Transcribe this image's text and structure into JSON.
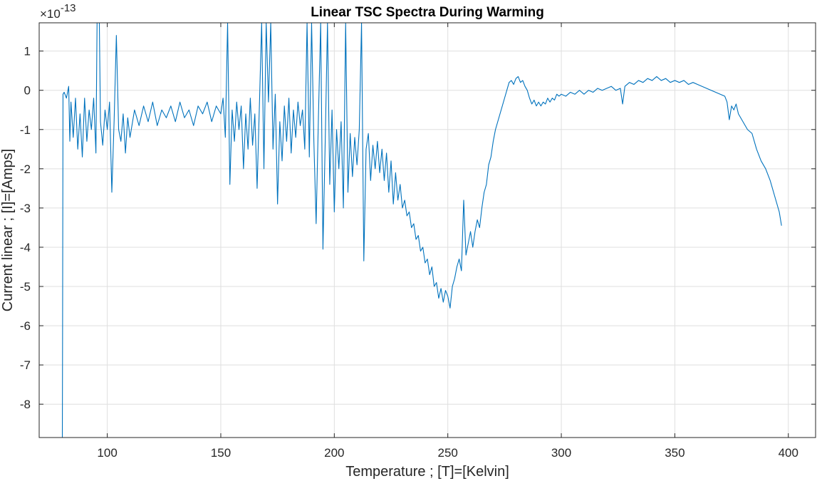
{
  "chart_data": {
    "type": "line",
    "title": "Linear TSC Spectra During Warming",
    "xlabel": "Temperature ; [T]=[Kelvin]",
    "ylabel": "Current linear ; [I]=[Amps]",
    "y_multiplier_base": "×10",
    "y_multiplier_exponent": "-13",
    "xlim": [
      70,
      412
    ],
    "ylim": [
      -8.85,
      1.72
    ],
    "x_ticks": [
      100,
      150,
      200,
      250,
      300,
      350,
      400
    ],
    "y_ticks": [
      -8,
      -7,
      -6,
      -5,
      -4,
      -3,
      -2,
      -1,
      0,
      1
    ],
    "x_tick_labels": [
      "100",
      "150",
      "200",
      "250",
      "300",
      "350",
      "400"
    ],
    "y_tick_labels": [
      "-8",
      "-7",
      "-6",
      "-5",
      "-4",
      "-3",
      "-2",
      "-1",
      "0",
      "1"
    ],
    "grid": true,
    "series": [
      {
        "color": "#0072BD",
        "points": [
          [
            80.2,
            -8.85
          ],
          [
            80.3,
            -6.4
          ],
          [
            80.5,
            -0.1
          ],
          [
            81,
            -0.05
          ],
          [
            82,
            -0.2
          ],
          [
            83,
            0.1
          ],
          [
            83.5,
            -1.3
          ],
          [
            84,
            -0.3
          ],
          [
            85,
            -1.2
          ],
          [
            86,
            -0.2
          ],
          [
            87,
            -1.5
          ],
          [
            88,
            -0.6
          ],
          [
            89,
            -1.7
          ],
          [
            90,
            -0.2
          ],
          [
            91,
            -1.3
          ],
          [
            92,
            -0.5
          ],
          [
            93,
            -1.0
          ],
          [
            94,
            -0.2
          ],
          [
            95,
            -1.6
          ],
          [
            95.5,
            1.72
          ],
          [
            96.5,
            1.72
          ],
          [
            97,
            -0.8
          ],
          [
            98,
            -1.4
          ],
          [
            99,
            -0.5
          ],
          [
            100,
            -1.0
          ],
          [
            101,
            -0.3
          ],
          [
            102,
            -2.6
          ],
          [
            103,
            -0.8
          ],
          [
            104,
            1.4
          ],
          [
            105,
            -1.0
          ],
          [
            106,
            -1.3
          ],
          [
            107,
            -0.6
          ],
          [
            108,
            -1.6
          ],
          [
            109,
            -0.7
          ],
          [
            110,
            -1.2
          ],
          [
            112,
            -0.5
          ],
          [
            114,
            -0.9
          ],
          [
            116,
            -0.4
          ],
          [
            118,
            -0.8
          ],
          [
            120,
            -0.3
          ],
          [
            122,
            -0.9
          ],
          [
            124,
            -0.5
          ],
          [
            126,
            -0.7
          ],
          [
            128,
            -0.4
          ],
          [
            130,
            -0.8
          ],
          [
            132,
            -0.3
          ],
          [
            134,
            -0.7
          ],
          [
            136,
            -0.5
          ],
          [
            138,
            -0.9
          ],
          [
            140,
            -0.4
          ],
          [
            142,
            -0.6
          ],
          [
            144,
            -0.3
          ],
          [
            146,
            -0.8
          ],
          [
            148,
            -0.4
          ],
          [
            150,
            -0.6
          ],
          [
            151,
            -0.2
          ],
          [
            152,
            -1.2
          ],
          [
            153,
            1.72
          ],
          [
            154,
            -2.4
          ],
          [
            155,
            -0.5
          ],
          [
            156,
            -1.3
          ],
          [
            157,
            -0.3
          ],
          [
            158,
            -1.0
          ],
          [
            159,
            -0.4
          ],
          [
            160,
            -2.0
          ],
          [
            161,
            -0.6
          ],
          [
            162,
            -1.5
          ],
          [
            163,
            -0.2
          ],
          [
            164,
            -1.4
          ],
          [
            165,
            -0.6
          ],
          [
            166,
            -2.5
          ],
          [
            167,
            -0.4
          ],
          [
            168,
            1.72
          ],
          [
            169,
            -2.0
          ],
          [
            170,
            1.72
          ],
          [
            171,
            -0.3
          ],
          [
            172,
            1.72
          ],
          [
            173,
            -1.5
          ],
          [
            174,
            -0.1
          ],
          [
            175,
            -2.9
          ],
          [
            176,
            -0.8
          ],
          [
            177,
            -1.8
          ],
          [
            178,
            -0.4
          ],
          [
            179,
            -1.3
          ],
          [
            180,
            -0.2
          ],
          [
            181,
            -1.6
          ],
          [
            182,
            -0.5
          ],
          [
            183,
            -1.2
          ],
          [
            184,
            -0.3
          ],
          [
            185,
            -0.9
          ],
          [
            186,
            -0.5
          ],
          [
            187,
            -1.5
          ],
          [
            188,
            1.72
          ],
          [
            189,
            -1.7
          ],
          [
            190,
            1.72
          ],
          [
            191,
            -1.3
          ],
          [
            192,
            -3.4
          ],
          [
            193,
            -0.7
          ],
          [
            194,
            1.72
          ],
          [
            195,
            -4.05
          ],
          [
            196,
            -1.3
          ],
          [
            197,
            1.72
          ],
          [
            198,
            -2.4
          ],
          [
            199,
            -0.5
          ],
          [
            200,
            -3.1
          ],
          [
            201,
            -1.0
          ],
          [
            202,
            -2.0
          ],
          [
            203,
            -0.8
          ],
          [
            204,
            -3.0
          ],
          [
            205,
            1.72
          ],
          [
            206,
            -2.6
          ],
          [
            207,
            -1.1
          ],
          [
            208,
            -2.2
          ],
          [
            209,
            -1.2
          ],
          [
            210,
            -1.9
          ],
          [
            211,
            -1.0
          ],
          [
            212,
            1.72
          ],
          [
            213,
            -4.35
          ],
          [
            214,
            -1.5
          ],
          [
            215,
            -1.1
          ],
          [
            216,
            -2.3
          ],
          [
            217,
            -1.4
          ],
          [
            218,
            -2.0
          ],
          [
            219,
            -1.3
          ],
          [
            220,
            -2.1
          ],
          [
            221,
            -1.5
          ],
          [
            222,
            -2.3
          ],
          [
            223,
            -1.6
          ],
          [
            224,
            -2.6
          ],
          [
            225,
            -1.8
          ],
          [
            226,
            -2.9
          ],
          [
            227,
            -2.1
          ],
          [
            228,
            -2.8
          ],
          [
            229,
            -2.4
          ],
          [
            230,
            -3.0
          ],
          [
            231,
            -2.8
          ],
          [
            232,
            -3.2
          ],
          [
            233,
            -3.1
          ],
          [
            234,
            -3.5
          ],
          [
            235,
            -3.4
          ],
          [
            236,
            -3.8
          ],
          [
            237,
            -3.7
          ],
          [
            238,
            -4.1
          ],
          [
            239,
            -4.0
          ],
          [
            240,
            -4.4
          ],
          [
            241,
            -4.3
          ],
          [
            242,
            -4.7
          ],
          [
            243,
            -4.5
          ],
          [
            244,
            -5.0
          ],
          [
            245,
            -4.9
          ],
          [
            246,
            -5.3
          ],
          [
            247,
            -5.05
          ],
          [
            248,
            -5.4
          ],
          [
            249,
            -5.1
          ],
          [
            250,
            -5.25
          ],
          [
            251,
            -5.55
          ],
          [
            252,
            -5.0
          ],
          [
            253,
            -4.8
          ],
          [
            254,
            -4.5
          ],
          [
            255,
            -4.3
          ],
          [
            256,
            -4.6
          ],
          [
            257,
            -2.8
          ],
          [
            258,
            -4.2
          ],
          [
            259,
            -3.9
          ],
          [
            260,
            -3.6
          ],
          [
            261,
            -4.0
          ],
          [
            262,
            -3.6
          ],
          [
            263,
            -3.3
          ],
          [
            264,
            -3.5
          ],
          [
            265,
            -3.0
          ],
          [
            266,
            -2.6
          ],
          [
            267,
            -2.4
          ],
          [
            268,
            -1.9
          ],
          [
            269,
            -1.7
          ],
          [
            270,
            -1.3
          ],
          [
            271,
            -1.0
          ],
          [
            272,
            -0.8
          ],
          [
            273,
            -0.6
          ],
          [
            274,
            -0.4
          ],
          [
            275,
            -0.2
          ],
          [
            276,
            0.0
          ],
          [
            277,
            0.2
          ],
          [
            278,
            0.25
          ],
          [
            279,
            0.15
          ],
          [
            280,
            0.3
          ],
          [
            281,
            0.35
          ],
          [
            282,
            0.2
          ],
          [
            283,
            0.25
          ],
          [
            284,
            0.1
          ],
          [
            285,
            0.0
          ],
          [
            286,
            -0.2
          ],
          [
            287,
            -0.35
          ],
          [
            288,
            -0.25
          ],
          [
            289,
            -0.4
          ],
          [
            290,
            -0.3
          ],
          [
            291,
            -0.4
          ],
          [
            292,
            -0.3
          ],
          [
            293,
            -0.35
          ],
          [
            294,
            -0.2
          ],
          [
            295,
            -0.3
          ],
          [
            296,
            -0.2
          ],
          [
            297,
            -0.25
          ],
          [
            298,
            -0.1
          ],
          [
            299,
            -0.15
          ],
          [
            300,
            -0.1
          ],
          [
            302,
            -0.15
          ],
          [
            304,
            -0.05
          ],
          [
            306,
            -0.1
          ],
          [
            308,
            0.0
          ],
          [
            310,
            -0.1
          ],
          [
            312,
            0.0
          ],
          [
            314,
            -0.05
          ],
          [
            316,
            0.05
          ],
          [
            318,
            0.0
          ],
          [
            320,
            0.05
          ],
          [
            322,
            0.1
          ],
          [
            324,
            0.0
          ],
          [
            326,
            0.05
          ],
          [
            327,
            -0.35
          ],
          [
            328,
            0.1
          ],
          [
            330,
            0.2
          ],
          [
            332,
            0.15
          ],
          [
            334,
            0.25
          ],
          [
            336,
            0.2
          ],
          [
            338,
            0.3
          ],
          [
            340,
            0.25
          ],
          [
            342,
            0.35
          ],
          [
            344,
            0.25
          ],
          [
            346,
            0.3
          ],
          [
            348,
            0.2
          ],
          [
            350,
            0.25
          ],
          [
            352,
            0.2
          ],
          [
            354,
            0.25
          ],
          [
            356,
            0.15
          ],
          [
            358,
            0.2
          ],
          [
            360,
            0.15
          ],
          [
            362,
            0.1
          ],
          [
            364,
            0.05
          ],
          [
            366,
            0.0
          ],
          [
            368,
            -0.05
          ],
          [
            370,
            -0.1
          ],
          [
            372,
            -0.15
          ],
          [
            373,
            -0.3
          ],
          [
            374,
            -0.75
          ],
          [
            375,
            -0.4
          ],
          [
            376,
            -0.5
          ],
          [
            377,
            -0.35
          ],
          [
            378,
            -0.6
          ],
          [
            380,
            -0.8
          ],
          [
            382,
            -1.0
          ],
          [
            384,
            -1.1
          ],
          [
            386,
            -1.5
          ],
          [
            388,
            -1.8
          ],
          [
            390,
            -2.0
          ],
          [
            392,
            -2.3
          ],
          [
            394,
            -2.7
          ],
          [
            396,
            -3.1
          ],
          [
            397,
            -3.45
          ]
        ]
      }
    ]
  }
}
